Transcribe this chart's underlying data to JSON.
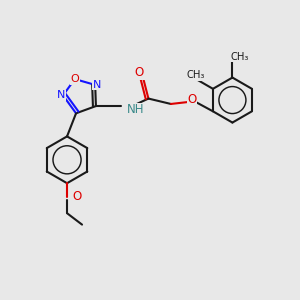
{
  "bg_color": "#e8e8e8",
  "bond_color": "#1a1a1a",
  "nitrogen_color": "#1414ff",
  "oxygen_color": "#dd0000",
  "nh_color": "#3a8a8a",
  "line_width": 1.5,
  "figsize": [
    3.0,
    3.0
  ],
  "dpi": 100,
  "xlim": [
    0,
    10
  ],
  "ylim": [
    0,
    10
  ]
}
